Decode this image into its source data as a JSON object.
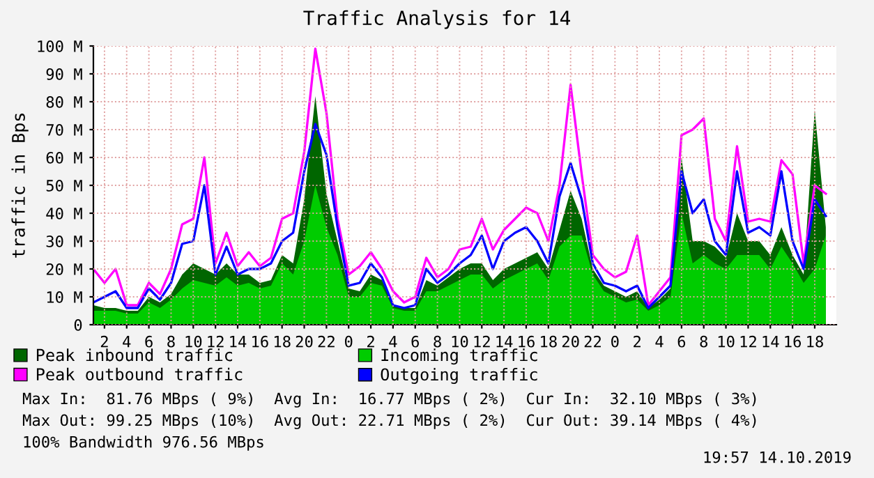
{
  "chart_data": {
    "type": "area",
    "title": "Traffic Analysis for 14",
    "ylabel": "traffic in Bps",
    "x": [
      "2019-10-12T01:00",
      "2019-10-12T02:00",
      "2019-10-12T03:00",
      "2019-10-12T04:00",
      "2019-10-12T05:00",
      "2019-10-12T06:00",
      "2019-10-12T07:00",
      "2019-10-12T08:00",
      "2019-10-12T09:00",
      "2019-10-12T10:00",
      "2019-10-12T11:00",
      "2019-10-12T12:00",
      "2019-10-12T13:00",
      "2019-10-12T14:00",
      "2019-10-12T15:00",
      "2019-10-12T16:00",
      "2019-10-12T17:00",
      "2019-10-12T18:00",
      "2019-10-12T19:00",
      "2019-10-12T20:00",
      "2019-10-12T21:00",
      "2019-10-12T22:00",
      "2019-10-12T23:00",
      "2019-10-13T00:00",
      "2019-10-13T01:00",
      "2019-10-13T02:00",
      "2019-10-13T03:00",
      "2019-10-13T04:00",
      "2019-10-13T05:00",
      "2019-10-13T06:00",
      "2019-10-13T07:00",
      "2019-10-13T08:00",
      "2019-10-13T09:00",
      "2019-10-13T10:00",
      "2019-10-13T11:00",
      "2019-10-13T12:00",
      "2019-10-13T13:00",
      "2019-10-13T14:00",
      "2019-10-13T15:00",
      "2019-10-13T16:00",
      "2019-10-13T17:00",
      "2019-10-13T18:00",
      "2019-10-13T19:00",
      "2019-10-13T20:00",
      "2019-10-13T21:00",
      "2019-10-13T22:00",
      "2019-10-13T23:00",
      "2019-10-14T00:00",
      "2019-10-14T01:00",
      "2019-10-14T02:00",
      "2019-10-14T03:00",
      "2019-10-14T04:00",
      "2019-10-14T05:00",
      "2019-10-14T06:00",
      "2019-10-14T07:00",
      "2019-10-14T08:00",
      "2019-10-14T09:00",
      "2019-10-14T10:00",
      "2019-10-14T11:00",
      "2019-10-14T12:00",
      "2019-10-14T13:00",
      "2019-10-14T14:00",
      "2019-10-14T15:00",
      "2019-10-14T16:00",
      "2019-10-14T17:00",
      "2019-10-14T18:00",
      "2019-10-14T19:00"
    ],
    "series": [
      {
        "name": "Peak inbound traffic",
        "color": "#006600",
        "values": [
          7,
          6,
          6,
          5,
          5,
          10,
          8,
          11,
          18,
          22,
          20,
          18,
          22,
          18,
          18,
          15,
          16,
          25,
          22,
          45,
          82,
          47,
          30,
          13,
          12,
          18,
          16,
          7,
          6,
          6,
          16,
          14,
          17,
          20,
          22,
          22,
          16,
          20,
          22,
          24,
          26,
          20,
          34,
          48,
          38,
          20,
          14,
          12,
          10,
          12,
          6,
          9,
          13,
          60,
          30,
          30,
          28,
          24,
          40,
          30,
          30,
          25,
          35,
          25,
          18,
          77,
          35
        ]
      },
      {
        "name": "Incoming traffic",
        "color": "#00cc00",
        "values": [
          5,
          5,
          5,
          4,
          4,
          8,
          6,
          9,
          13,
          16,
          15,
          14,
          17,
          14,
          15,
          13,
          14,
          22,
          18,
          30,
          50,
          35,
          25,
          10,
          10,
          15,
          14,
          6,
          5,
          5,
          12,
          12,
          14,
          16,
          18,
          18,
          13,
          16,
          18,
          20,
          22,
          16,
          28,
          32,
          32,
          18,
          12,
          10,
          8,
          9,
          5,
          7,
          10,
          40,
          22,
          25,
          22,
          20,
          25,
          25,
          25,
          20,
          28,
          22,
          15,
          20,
          32
        ]
      },
      {
        "name": "Peak outbound traffic",
        "type": "line",
        "color": "#ff00ff",
        "values": [
          20,
          15,
          20,
          7,
          7,
          15,
          11,
          20,
          36,
          38,
          60,
          22,
          33,
          21,
          26,
          21,
          24,
          38,
          40,
          62,
          99,
          76,
          38,
          18,
          21,
          26,
          20,
          12,
          8,
          10,
          24,
          17,
          20,
          27,
          28,
          38,
          27,
          34,
          38,
          42,
          40,
          30,
          50,
          86,
          54,
          25,
          20,
          17,
          19,
          32,
          7,
          12,
          17,
          68,
          70,
          74,
          38,
          30,
          64,
          37,
          38,
          37,
          59,
          54,
          22,
          50,
          47
        ]
      },
      {
        "name": "Outgoing traffic",
        "type": "line",
        "color": "#0000ff",
        "values": [
          8,
          10,
          12,
          6,
          6,
          13,
          9,
          15,
          29,
          30,
          50,
          18,
          28,
          18,
          20,
          20,
          22,
          30,
          33,
          55,
          72,
          61,
          35,
          14,
          15,
          22,
          17,
          7,
          6,
          7,
          20,
          15,
          18,
          22,
          25,
          32,
          20,
          30,
          33,
          35,
          30,
          22,
          46,
          58,
          45,
          22,
          15,
          14,
          12,
          14,
          6,
          10,
          14,
          55,
          40,
          45,
          30,
          25,
          55,
          33,
          35,
          32,
          55,
          30,
          20,
          45,
          39
        ]
      }
    ],
    "xlim": [
      "2019-10-12T01:00",
      "2019-10-14T19:57"
    ],
    "xticks": [
      {
        "value": "2019-10-12T02:00",
        "label": "2"
      },
      {
        "value": "2019-10-12T04:00",
        "label": "4"
      },
      {
        "value": "2019-10-12T06:00",
        "label": "6"
      },
      {
        "value": "2019-10-12T08:00",
        "label": "8"
      },
      {
        "value": "2019-10-12T10:00",
        "label": "10"
      },
      {
        "value": "2019-10-12T12:00",
        "label": "12"
      },
      {
        "value": "2019-10-12T14:00",
        "label": "14"
      },
      {
        "value": "2019-10-12T16:00",
        "label": "16"
      },
      {
        "value": "2019-10-12T18:00",
        "label": "18"
      },
      {
        "value": "2019-10-12T20:00",
        "label": "20"
      },
      {
        "value": "2019-10-12T22:00",
        "label": "22"
      },
      {
        "value": "2019-10-13T00:00",
        "label": "0"
      },
      {
        "value": "2019-10-13T02:00",
        "label": "2"
      },
      {
        "value": "2019-10-13T04:00",
        "label": "4"
      },
      {
        "value": "2019-10-13T06:00",
        "label": "6"
      },
      {
        "value": "2019-10-13T08:00",
        "label": "8"
      },
      {
        "value": "2019-10-13T10:00",
        "label": "10"
      },
      {
        "value": "2019-10-13T12:00",
        "label": "12"
      },
      {
        "value": "2019-10-13T14:00",
        "label": "14"
      },
      {
        "value": "2019-10-13T16:00",
        "label": "16"
      },
      {
        "value": "2019-10-13T18:00",
        "label": "18"
      },
      {
        "value": "2019-10-13T20:00",
        "label": "20"
      },
      {
        "value": "2019-10-13T22:00",
        "label": "22"
      },
      {
        "value": "2019-10-14T00:00",
        "label": "0"
      },
      {
        "value": "2019-10-14T02:00",
        "label": "2"
      },
      {
        "value": "2019-10-14T04:00",
        "label": "4"
      },
      {
        "value": "2019-10-14T06:00",
        "label": "6"
      },
      {
        "value": "2019-10-14T08:00",
        "label": "8"
      },
      {
        "value": "2019-10-14T10:00",
        "label": "10"
      },
      {
        "value": "2019-10-14T12:00",
        "label": "12"
      },
      {
        "value": "2019-10-14T14:00",
        "label": "14"
      },
      {
        "value": "2019-10-14T16:00",
        "label": "16"
      },
      {
        "value": "2019-10-14T18:00",
        "label": "18"
      }
    ],
    "ylim": [
      0,
      100
    ],
    "yticks": [
      0,
      {
        "value": 10,
        "label": "10 M"
      },
      {
        "value": 20,
        "label": "20 M"
      },
      {
        "value": 30,
        "label": "30 M"
      },
      {
        "value": 40,
        "label": "40 M"
      },
      {
        "value": 50,
        "label": "50 M"
      },
      {
        "value": 60,
        "label": "60 M"
      },
      {
        "value": 70,
        "label": "70 M"
      },
      {
        "value": 80,
        "label": "80 M"
      },
      {
        "value": 90,
        "label": "90 M"
      },
      {
        "value": 100,
        "label": "100 M"
      }
    ],
    "grid": true,
    "legend": "bottom",
    "annotations": [
      "Max In:  81.76 MBps ( 9%)  Avg In:  16.77 MBps ( 2%)  Cur In:  32.10 MBps ( 3%)",
      "Max Out: 99.25 MBps (10%)  Avg Out: 22.71 MBps ( 2%)  Cur Out: 39.14 MBps ( 4%)",
      "100% Bandwidth 976.56 MBps",
      "19:57 14.10.2019"
    ]
  }
}
